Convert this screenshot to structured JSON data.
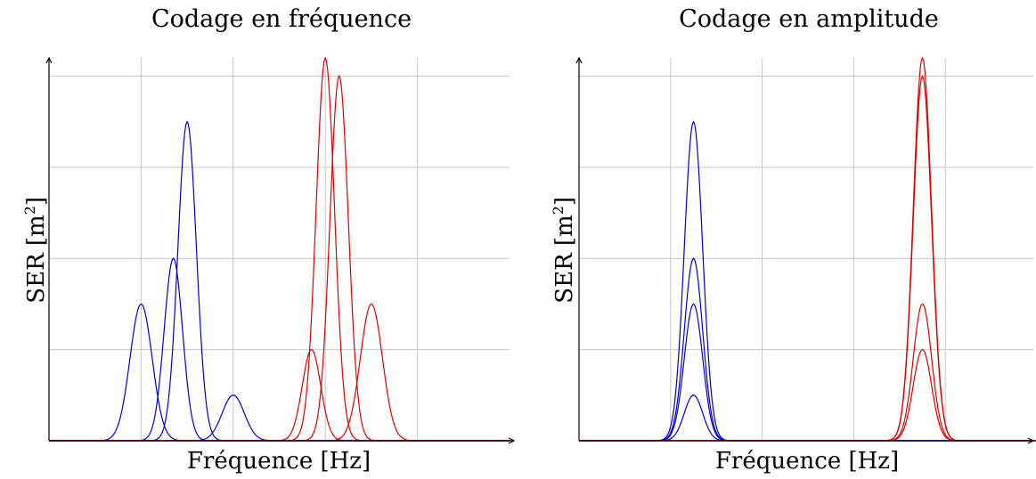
{
  "chart_data": [
    {
      "type": "line",
      "title": "Codage en fréquence",
      "xlabel": "Fréquence [Hz]",
      "ylabel": "SER [m²]",
      "ylabel_base": "SER [m",
      "ylabel_sup": "2",
      "ylabel_end": "]",
      "xlim": [
        0,
        5
      ],
      "ylim": [
        0,
        4.2
      ],
      "grid": true,
      "colors": {
        "blue": "#0000cc",
        "red": "#dd0000",
        "grid": "#c8c8c8"
      },
      "series": [
        {
          "color": "blue",
          "center": 1.0,
          "amplitude": 1.5,
          "width": 0.12
        },
        {
          "color": "blue",
          "center": 1.35,
          "amplitude": 2.0,
          "width": 0.1
        },
        {
          "color": "blue",
          "center": 1.5,
          "amplitude": 3.5,
          "width": 0.1
        },
        {
          "color": "blue",
          "center": 2.0,
          "amplitude": 0.5,
          "width": 0.12
        },
        {
          "color": "red",
          "center": 2.85,
          "amplitude": 1.0,
          "width": 0.1
        },
        {
          "color": "red",
          "center": 3.0,
          "amplitude": 4.2,
          "width": 0.1
        },
        {
          "color": "red",
          "center": 3.15,
          "amplitude": 4.0,
          "width": 0.1
        },
        {
          "color": "red",
          "center": 3.5,
          "amplitude": 1.5,
          "width": 0.12
        }
      ]
    },
    {
      "type": "line",
      "title": "Codage en amplitude",
      "xlabel": "Fréquence [Hz]",
      "ylabel": "SER [m²]",
      "ylabel_base": "SER [m",
      "ylabel_sup": "2",
      "ylabel_end": "]",
      "xlim": [
        0,
        5
      ],
      "ylim": [
        0,
        4.2
      ],
      "grid": true,
      "colors": {
        "blue": "#0000cc",
        "red": "#dd0000",
        "grid": "#c8c8c8"
      },
      "series": [
        {
          "color": "blue",
          "center": 1.25,
          "amplitude": 0.5,
          "width": 0.1
        },
        {
          "color": "blue",
          "center": 1.25,
          "amplitude": 1.5,
          "width": 0.1
        },
        {
          "color": "blue",
          "center": 1.25,
          "amplitude": 2.0,
          "width": 0.1
        },
        {
          "color": "blue",
          "center": 1.25,
          "amplitude": 3.5,
          "width": 0.1
        },
        {
          "color": "red",
          "center": 3.75,
          "amplitude": 1.0,
          "width": 0.1
        },
        {
          "color": "red",
          "center": 3.75,
          "amplitude": 1.5,
          "width": 0.1
        },
        {
          "color": "red",
          "center": 3.75,
          "amplitude": 4.0,
          "width": 0.1
        },
        {
          "color": "red",
          "center": 3.75,
          "amplitude": 4.2,
          "width": 0.1
        }
      ]
    }
  ]
}
